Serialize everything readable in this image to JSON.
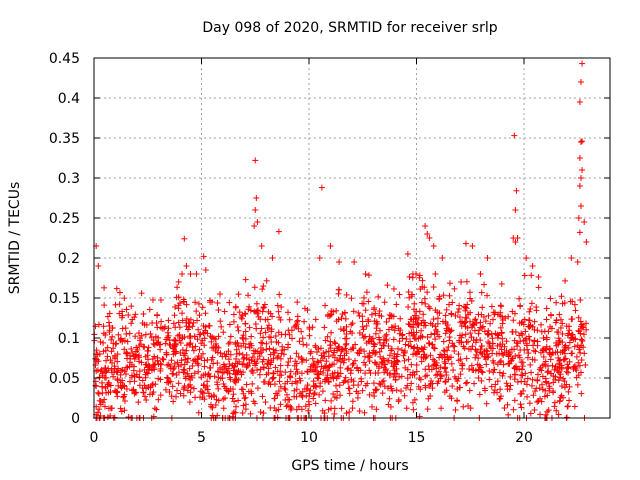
{
  "chart_data": {
    "type": "scatter",
    "title": "Day 098 of 2020, SRMTID for receiver srlp",
    "xlabel": "GPS time / hours",
    "ylabel": "SRMTID / TECUs",
    "xlim": [
      0,
      24
    ],
    "ylim": [
      0,
      0.45
    ],
    "x_ticks": [
      0,
      5,
      10,
      15,
      20
    ],
    "y_ticks": [
      0,
      0.05,
      0.1,
      0.15,
      0.2,
      0.25,
      0.3,
      0.35,
      0.4,
      0.45
    ],
    "x_tick_labels": [
      "0",
      "5",
      "10",
      "15",
      "20"
    ],
    "y_tick_labels": [
      "0",
      "0.05",
      "0.1",
      "0.15",
      "0.2",
      "0.25",
      "0.3",
      "0.35",
      "0.4",
      "0.45"
    ],
    "grid": true,
    "marker": "+",
    "color": "#ff0000",
    "series": [
      {
        "name": "srlp",
        "x_range_hours": [
          0,
          22.9
        ],
        "typical_range": [
          0,
          0.15
        ],
        "approx_points": 2200,
        "seed": 98,
        "trend": [
          [
            0,
            0.05
          ],
          [
            1,
            0.06
          ],
          [
            2,
            0.07
          ],
          [
            3,
            0.07
          ],
          [
            4,
            0.09
          ],
          [
            5,
            0.08
          ],
          [
            6,
            0.04
          ],
          [
            7,
            0.08
          ],
          [
            8,
            0.08
          ],
          [
            9,
            0.06
          ],
          [
            10,
            0.06
          ],
          [
            11,
            0.07
          ],
          [
            12,
            0.07
          ],
          [
            13,
            0.08
          ],
          [
            14,
            0.07
          ],
          [
            15,
            0.1
          ],
          [
            16,
            0.09
          ],
          [
            17,
            0.09
          ],
          [
            18,
            0.09
          ],
          [
            19,
            0.08
          ],
          [
            20,
            0.08
          ],
          [
            21,
            0.07
          ],
          [
            22,
            0.07
          ],
          [
            22.9,
            0.09
          ]
        ],
        "notable_points": [
          [
            0.1,
            0.215
          ],
          [
            0.2,
            0.19
          ],
          [
            4.2,
            0.224
          ],
          [
            4.3,
            0.19
          ],
          [
            5.1,
            0.202
          ],
          [
            5.2,
            0.185
          ],
          [
            7.5,
            0.322
          ],
          [
            7.55,
            0.275
          ],
          [
            7.5,
            0.26
          ],
          [
            7.45,
            0.24
          ],
          [
            7.6,
            0.245
          ],
          [
            7.8,
            0.215
          ],
          [
            8.3,
            0.2
          ],
          [
            8.6,
            0.233
          ],
          [
            10.6,
            0.288
          ],
          [
            10.5,
            0.2
          ],
          [
            11.0,
            0.215
          ],
          [
            11.4,
            0.195
          ],
          [
            12.1,
            0.195
          ],
          [
            14.6,
            0.205
          ],
          [
            15.4,
            0.24
          ],
          [
            15.5,
            0.23
          ],
          [
            15.6,
            0.225
          ],
          [
            15.8,
            0.215
          ],
          [
            16.2,
            0.2
          ],
          [
            17.3,
            0.218
          ],
          [
            17.6,
            0.215
          ],
          [
            18.3,
            0.2
          ],
          [
            19.5,
            0.225
          ],
          [
            19.6,
            0.22
          ],
          [
            19.7,
            0.225
          ],
          [
            19.6,
            0.26
          ],
          [
            19.65,
            0.284
          ],
          [
            19.55,
            0.353
          ],
          [
            20.1,
            0.2
          ],
          [
            20.4,
            0.19
          ],
          [
            22.2,
            0.2
          ],
          [
            22.5,
            0.195
          ],
          [
            22.6,
            0.232
          ],
          [
            22.65,
            0.265
          ],
          [
            22.6,
            0.29
          ],
          [
            22.65,
            0.3
          ],
          [
            22.7,
            0.31
          ],
          [
            22.6,
            0.325
          ],
          [
            22.65,
            0.345
          ],
          [
            22.7,
            0.346
          ],
          [
            22.6,
            0.395
          ],
          [
            22.65,
            0.42
          ],
          [
            22.7,
            0.443
          ],
          [
            22.55,
            0.25
          ],
          [
            22.8,
            0.245
          ],
          [
            22.9,
            0.22
          ],
          [
            10.7,
            0.0
          ],
          [
            6.1,
            0.0
          ],
          [
            21.3,
            0.0
          ],
          [
            19.8,
            0.0
          ]
        ]
      }
    ]
  }
}
